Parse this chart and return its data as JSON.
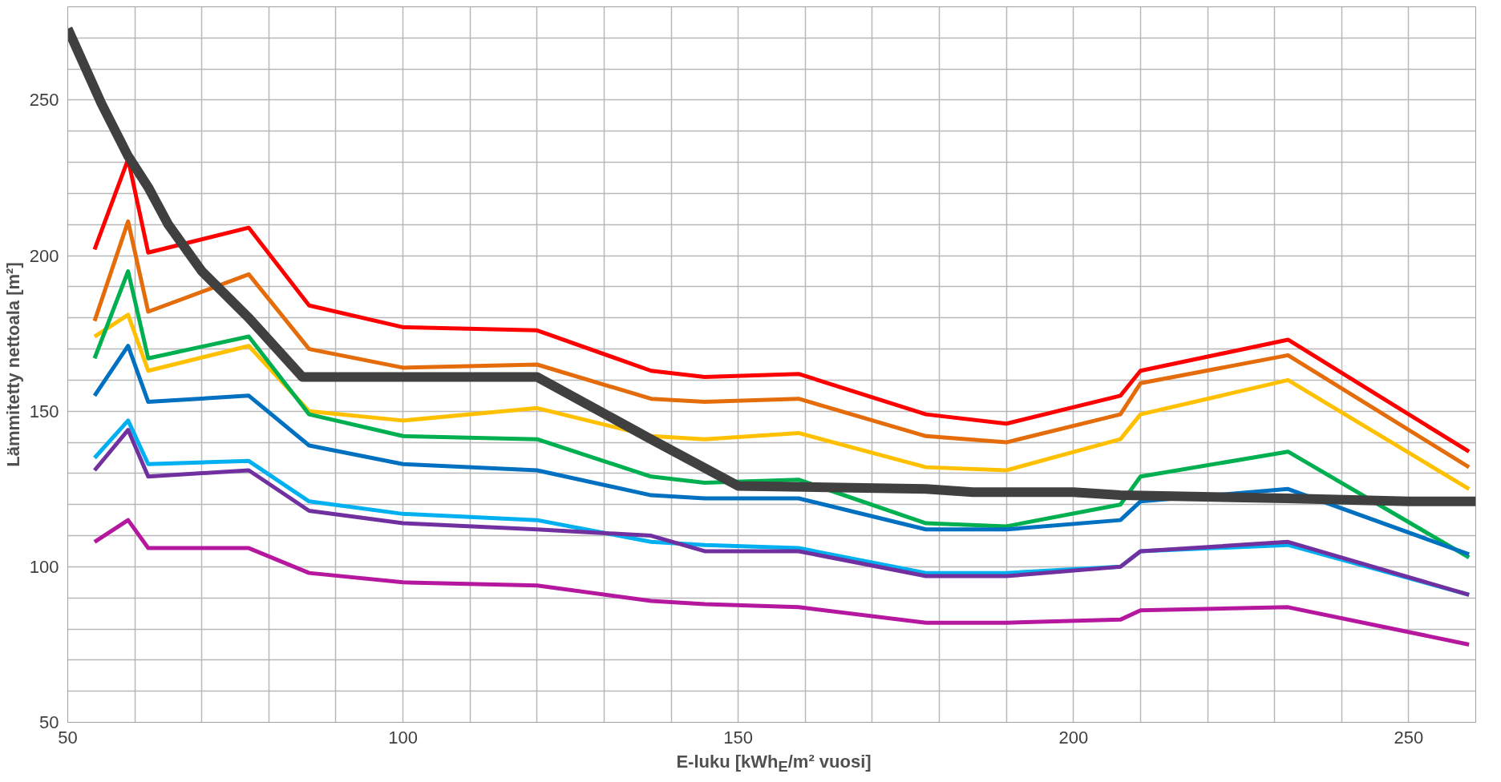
{
  "chart_data": {
    "type": "line",
    "xlabel": "E-luku [kWh$_{E}$/m² vuosi]",
    "ylabel": "Lämmitetty nettoala [m²]",
    "xlim": [
      50,
      260
    ],
    "ylim": [
      50,
      280
    ],
    "xticks": [
      50,
      {
        "value": 60,
        "label": null
      },
      {
        "value": 70,
        "label": null
      },
      {
        "value": 80,
        "label": null
      },
      {
        "value": 90,
        "label": null
      },
      100,
      {
        "value": 110,
        "label": null
      },
      {
        "value": 120,
        "label": null
      },
      {
        "value": 130,
        "label": null
      },
      {
        "value": 140,
        "label": null
      },
      150,
      {
        "value": 160,
        "label": null
      },
      {
        "value": 170,
        "label": null
      },
      {
        "value": 180,
        "label": null
      },
      {
        "value": 190,
        "label": null
      },
      200,
      {
        "value": 210,
        "label": null
      },
      {
        "value": 220,
        "label": null
      },
      {
        "value": 230,
        "label": null
      },
      {
        "value": 240,
        "label": null
      },
      250
    ],
    "yticks": [
      50,
      {
        "value": 60,
        "label": null
      },
      {
        "value": 70,
        "label": null
      },
      {
        "value": 80,
        "label": null
      },
      {
        "value": 90,
        "label": null
      },
      100,
      {
        "value": 110,
        "label": null
      },
      {
        "value": 120,
        "label": null
      },
      {
        "value": 130,
        "label": null
      },
      {
        "value": 140,
        "label": null
      },
      150,
      {
        "value": 160,
        "label": null
      },
      {
        "value": 170,
        "label": null
      },
      {
        "value": 180,
        "label": null
      },
      {
        "value": 190,
        "label": null
      },
      200,
      {
        "value": 210,
        "label": null
      },
      {
        "value": 220,
        "label": null
      },
      {
        "value": 230,
        "label": null
      },
      {
        "value": 240,
        "label": null
      },
      250,
      {
        "value": 260,
        "label": null
      },
      {
        "value": 270,
        "label": null
      }
    ],
    "grid": true,
    "x": [
      54,
      59,
      62,
      77,
      86,
      100,
      120,
      137,
      145,
      159,
      178,
      190,
      207,
      210,
      232,
      259
    ],
    "series": [
      {
        "color": "#ff0000",
        "values": [
          202,
          231,
          201,
          209,
          184,
          177,
          176,
          163,
          161,
          162,
          149,
          146,
          155,
          163,
          173,
          137
        ]
      },
      {
        "color": "#e46c0a",
        "values": [
          179,
          211,
          182,
          194,
          170,
          164,
          165,
          154,
          153,
          154,
          142,
          140,
          149,
          159,
          168,
          132
        ]
      },
      {
        "color": "#ffc000",
        "values": [
          174,
          181,
          163,
          171,
          150,
          147,
          151,
          142,
          141,
          143,
          132,
          131,
          141,
          149,
          160,
          125
        ]
      },
      {
        "color": "#00b050",
        "values": [
          167,
          195,
          167,
          174,
          149,
          142,
          141,
          129,
          127,
          128,
          114,
          113,
          120,
          129,
          137,
          103
        ]
      },
      {
        "color": "#0070c0",
        "values": [
          155,
          171,
          153,
          155,
          139,
          133,
          131,
          123,
          122,
          122,
          112,
          112,
          115,
          121,
          125,
          104
        ]
      },
      {
        "color": "#00b0f0",
        "values": [
          135,
          147,
          133,
          134,
          121,
          117,
          115,
          108,
          107,
          106,
          98,
          98,
          100,
          105,
          107,
          91
        ]
      },
      {
        "color": "#7030a0",
        "values": [
          131,
          144,
          129,
          131,
          118,
          114,
          112,
          110,
          105,
          105,
          97,
          97,
          100,
          105,
          108,
          91
        ]
      },
      {
        "color": "#b5179e",
        "values": [
          108,
          115,
          106,
          106,
          98,
          95,
          94,
          89,
          88,
          87,
          82,
          82,
          83,
          86,
          87,
          75
        ]
      },
      {
        "color": "#404040",
        "x": [
          50,
          55,
          59,
          62,
          65,
          70,
          77,
          85,
          120,
          137,
          150,
          178,
          185,
          200,
          207,
          232,
          250,
          260
        ],
        "values": [
          273,
          249,
          232,
          222,
          210,
          195,
          180,
          161,
          161,
          141,
          126,
          125,
          124,
          124,
          123,
          122,
          121,
          121
        ]
      }
    ]
  }
}
